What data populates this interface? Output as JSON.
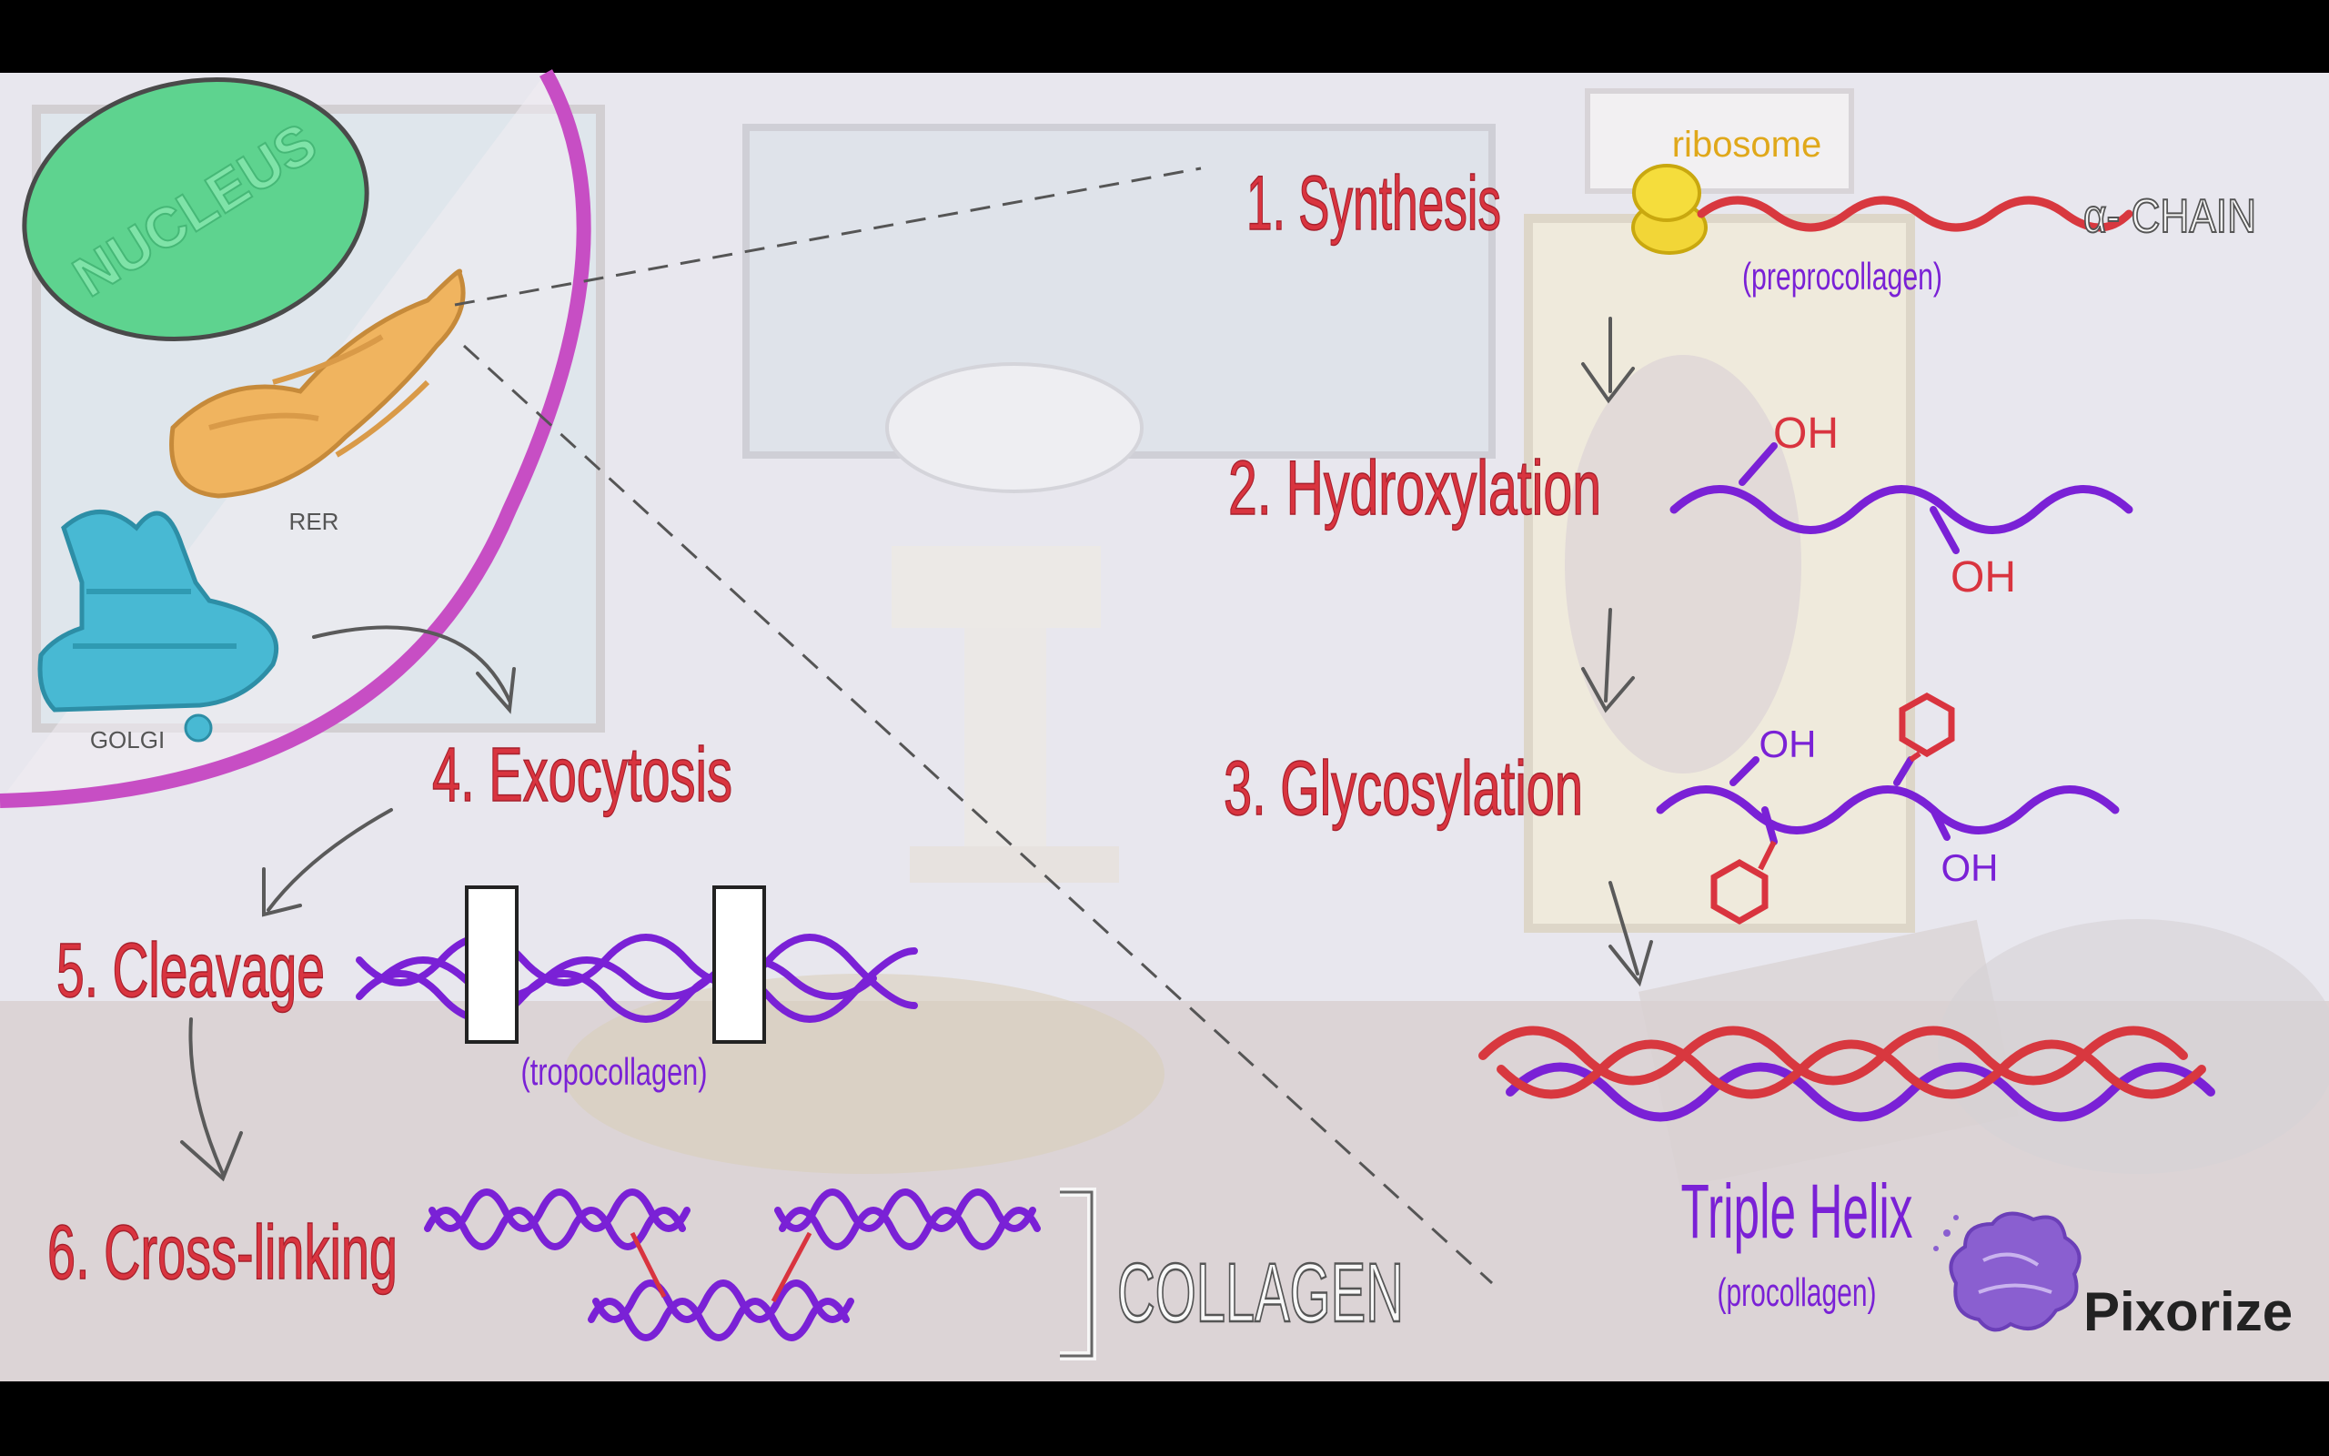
{
  "colors": {
    "step_red": "#d9343f",
    "purple": "#7a21d6",
    "red_strand": "#d8383f",
    "nucleus_green": "#56d18a",
    "rer_tan": "#e8b060",
    "golgi_blue": "#3fb3cf",
    "cell_membrane": "#c74ec4",
    "arrow_gray": "#5a5a5a",
    "background": "#e7e7ee"
  },
  "cell": {
    "nucleus_label": "NUCLEUS",
    "rer_label": "RER",
    "golgi_label": "GOLGI"
  },
  "steps": {
    "synthesis": "1. Synthesis",
    "hydroxylation": "2. Hydroxylation",
    "glycosylation": "3. Glycosylation",
    "exocytosis": "4. Exocytosis",
    "cleavage": "5. Cleavage",
    "crosslinking": "6. Cross-linking"
  },
  "annotations": {
    "ribosome": "ribosome",
    "alpha_chain": "α- CHAIN",
    "preprocollagen": "(preprocollagen)",
    "oh": "OH",
    "tropocollagen": "(tropocollagen)",
    "triple_helix": "Triple Helix",
    "procollagen": "(procollagen)",
    "collagen": "COLLAGEN"
  },
  "brand": {
    "name": "Pixorize"
  }
}
